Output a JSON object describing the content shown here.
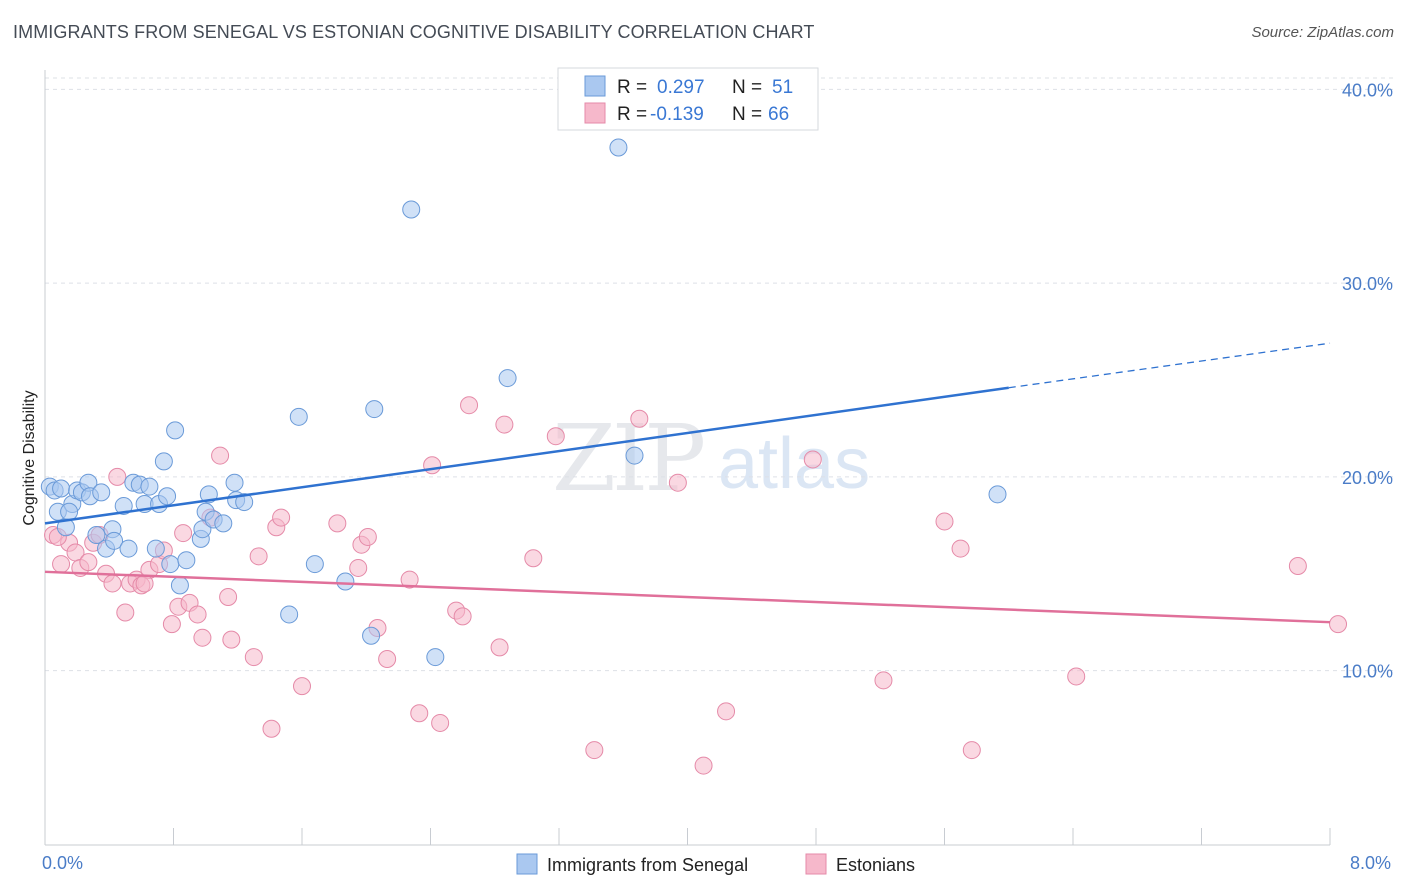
{
  "title": "IMMIGRANTS FROM SENEGAL VS ESTONIAN COGNITIVE DISABILITY CORRELATION CHART",
  "source": "Source: ZipAtlas.com",
  "watermark": {
    "zip": "ZIP",
    "atlas": "atlas"
  },
  "colors": {
    "blue_fill": "#aac8f0",
    "blue_stroke": "#6a9ad8",
    "blue_line": "#2f72d0",
    "pink_fill": "#f6b8cb",
    "pink_stroke": "#e58aa8",
    "pink_line": "#e0709a",
    "tick_text": "#4a7cc7",
    "grid": "#dde0e6"
  },
  "legend": {
    "rows": [
      {
        "r_label": "R =",
        "r_value": "0.297",
        "n_label": "N =",
        "n_value": "51"
      },
      {
        "r_label": "R =",
        "r_value": "-0.139",
        "n_label": "N =",
        "n_value": "66"
      }
    ]
  },
  "chart_data": {
    "type": "scatter",
    "xlabel": "",
    "ylabel": "Cognitive Disability",
    "xlim": [
      0,
      8
    ],
    "ylim": [
      1,
      41
    ],
    "x_tick_labels": [
      "0.0%",
      "8.0%"
    ],
    "y_ticks": [
      10,
      20,
      30,
      40
    ],
    "y_tick_labels": [
      "10.0%",
      "20.0%",
      "30.0%",
      "40.0%"
    ],
    "grid": "horizontal dashed",
    "legend_position": "top-center",
    "series": [
      {
        "name": "Immigrants from Senegal",
        "color": "#aac8f0",
        "trend": {
          "x0": 0,
          "y0": 17.6,
          "x1": 6.0,
          "y1": 24.6,
          "dash_to_x": 8.0,
          "dash_to_y": 26.9
        },
        "points": [
          [
            0.03,
            19.5
          ],
          [
            0.06,
            19.3
          ],
          [
            0.08,
            18.2
          ],
          [
            0.1,
            19.4
          ],
          [
            0.13,
            17.4
          ],
          [
            0.17,
            18.6
          ],
          [
            0.2,
            19.3
          ],
          [
            0.23,
            19.2
          ],
          [
            0.27,
            19.7
          ],
          [
            0.28,
            19.0
          ],
          [
            0.32,
            17.0
          ],
          [
            0.35,
            19.2
          ],
          [
            0.38,
            16.3
          ],
          [
            0.42,
            17.3
          ],
          [
            0.43,
            16.7
          ],
          [
            0.49,
            18.5
          ],
          [
            0.52,
            16.3
          ],
          [
            0.55,
            19.7
          ],
          [
            0.59,
            19.6
          ],
          [
            0.62,
            18.6
          ],
          [
            0.65,
            19.5
          ],
          [
            0.69,
            16.3
          ],
          [
            0.71,
            18.6
          ],
          [
            0.74,
            20.8
          ],
          [
            0.76,
            19.0
          ],
          [
            0.78,
            15.5
          ],
          [
            0.81,
            22.4
          ],
          [
            0.84,
            14.4
          ],
          [
            0.88,
            15.7
          ],
          [
            0.97,
            16.8
          ],
          [
            0.98,
            17.3
          ],
          [
            1.0,
            18.2
          ],
          [
            1.02,
            19.1
          ],
          [
            1.05,
            17.8
          ],
          [
            1.11,
            17.6
          ],
          [
            1.18,
            19.7
          ],
          [
            1.19,
            18.8
          ],
          [
            1.24,
            18.7
          ],
          [
            1.52,
            12.9
          ],
          [
            1.58,
            23.1
          ],
          [
            1.68,
            15.5
          ],
          [
            1.87,
            14.6
          ],
          [
            2.03,
            11.8
          ],
          [
            2.05,
            23.5
          ],
          [
            2.28,
            33.8
          ],
          [
            2.43,
            10.7
          ],
          [
            2.88,
            25.1
          ],
          [
            3.57,
            37.0
          ],
          [
            3.67,
            21.1
          ],
          [
            5.93,
            19.1
          ],
          [
            0.15,
            18.2
          ]
        ]
      },
      {
        "name": "Estonians",
        "color": "#f6b8cb",
        "trend": {
          "x0": 0,
          "y0": 15.1,
          "x1": 8.0,
          "y1": 12.5
        },
        "points": [
          [
            0.05,
            17.0
          ],
          [
            0.1,
            15.5
          ],
          [
            0.15,
            16.6
          ],
          [
            0.19,
            16.1
          ],
          [
            0.22,
            15.3
          ],
          [
            0.27,
            15.6
          ],
          [
            0.3,
            16.6
          ],
          [
            0.34,
            17.0
          ],
          [
            0.38,
            15.0
          ],
          [
            0.42,
            14.5
          ],
          [
            0.45,
            20.0
          ],
          [
            0.5,
            13.0
          ],
          [
            0.53,
            14.5
          ],
          [
            0.57,
            14.7
          ],
          [
            0.6,
            14.4
          ],
          [
            0.65,
            15.2
          ],
          [
            0.71,
            15.5
          ],
          [
            0.74,
            16.2
          ],
          [
            0.79,
            12.4
          ],
          [
            0.83,
            13.3
          ],
          [
            0.86,
            17.1
          ],
          [
            0.9,
            13.5
          ],
          [
            0.95,
            12.9
          ],
          [
            0.98,
            11.7
          ],
          [
            1.03,
            17.9
          ],
          [
            1.09,
            21.1
          ],
          [
            1.14,
            13.8
          ],
          [
            1.16,
            11.6
          ],
          [
            1.3,
            10.7
          ],
          [
            1.33,
            15.9
          ],
          [
            1.41,
            7.0
          ],
          [
            1.44,
            17.4
          ],
          [
            1.47,
            17.9
          ],
          [
            1.6,
            9.2
          ],
          [
            1.82,
            17.6
          ],
          [
            1.95,
            15.3
          ],
          [
            1.97,
            16.5
          ],
          [
            2.01,
            16.9
          ],
          [
            2.07,
            12.2
          ],
          [
            2.13,
            10.6
          ],
          [
            2.27,
            14.7
          ],
          [
            2.33,
            7.8
          ],
          [
            2.41,
            20.6
          ],
          [
            2.46,
            7.3
          ],
          [
            2.56,
            13.1
          ],
          [
            2.6,
            12.8
          ],
          [
            2.64,
            23.7
          ],
          [
            2.83,
            11.2
          ],
          [
            2.86,
            22.7
          ],
          [
            3.04,
            15.8
          ],
          [
            3.18,
            22.1
          ],
          [
            3.42,
            5.9
          ],
          [
            3.7,
            23.0
          ],
          [
            3.94,
            19.7
          ],
          [
            4.1,
            5.1
          ],
          [
            4.24,
            7.9
          ],
          [
            4.78,
            20.9
          ],
          [
            5.22,
            9.5
          ],
          [
            5.6,
            17.7
          ],
          [
            5.7,
            16.3
          ],
          [
            5.77,
            5.9
          ],
          [
            6.42,
            9.7
          ],
          [
            7.8,
            15.4
          ],
          [
            8.05,
            12.4
          ],
          [
            0.08,
            16.9
          ],
          [
            0.62,
            14.5
          ]
        ]
      }
    ]
  },
  "bottom_legend": [
    {
      "label": "Immigrants from Senegal"
    },
    {
      "label": "Estonians"
    }
  ]
}
